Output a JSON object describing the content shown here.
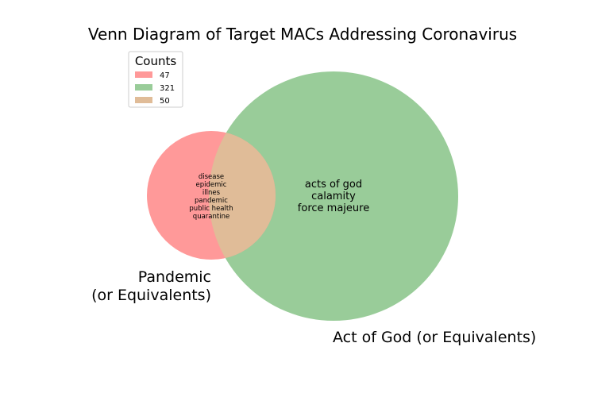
{
  "title": "Venn Diagram of Target MACs Addressing Coronavirus",
  "sets": {
    "left": {
      "label_lines": [
        "Pandemic",
        "(or Equivalents)"
      ],
      "color": "#ff9999"
    },
    "right": {
      "label_lines": [
        "Act of God (or Equivalents)"
      ],
      "color": "#99cc99"
    },
    "overlap": {
      "color": "#e0bc98"
    }
  },
  "regions": {
    "overlap_terms": [
      "disease",
      "epidemic",
      "illnes",
      "pandemic",
      "public health",
      "quarantine"
    ],
    "right_only_terms": [
      "acts of god",
      "calamity",
      "force majeure"
    ]
  },
  "legend": {
    "title": "Counts",
    "entries": [
      {
        "label": "47",
        "color": "#ff9999"
      },
      {
        "label": "321",
        "color": "#99cc99"
      },
      {
        "label": "50",
        "color": "#e0bc98"
      }
    ]
  }
}
